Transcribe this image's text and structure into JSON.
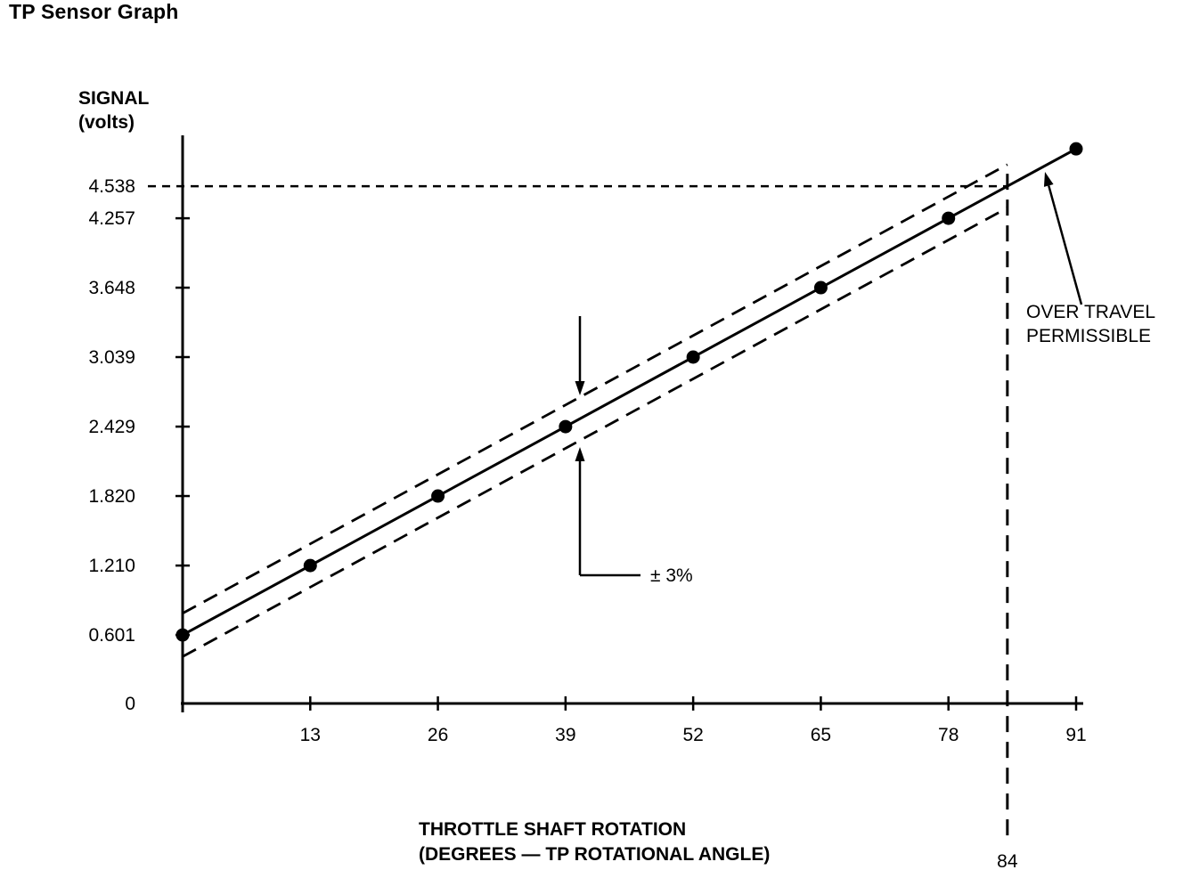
{
  "page_title": "TP Sensor Graph",
  "chart_data": {
    "type": "line",
    "title": "TP Sensor Graph",
    "ylabel_line1": "SIGNAL",
    "ylabel_line2": "(volts)",
    "xlabel_line1": "THROTTLE SHAFT ROTATION",
    "xlabel_line2": "(DEGREES — TP ROTATIONAL ANGLE)",
    "xlim": [
      0,
      91
    ],
    "ylim": [
      0,
      5
    ],
    "grid": false,
    "legend": false,
    "x_ticks": [
      "13",
      "26",
      "39",
      "52",
      "65",
      "78",
      "91"
    ],
    "x_tick_values": [
      13,
      26,
      39,
      52,
      65,
      78,
      91
    ],
    "y_ticks": [
      "0",
      "0.601",
      "1.210",
      "1.820",
      "2.429",
      "3.039",
      "3.648",
      "4.257",
      "4.538"
    ],
    "y_tick_values": [
      0,
      0.601,
      1.21,
      1.82,
      2.429,
      3.039,
      3.648,
      4.257,
      4.538
    ],
    "series": [
      {
        "name": "nominal-signal",
        "style": "solid",
        "marker": "dot",
        "degrees": [
          0,
          13,
          26,
          39,
          52,
          65,
          78,
          91
        ],
        "volts": [
          0.601,
          1.21,
          1.82,
          2.429,
          3.039,
          3.648,
          4.257,
          4.866
        ]
      },
      {
        "name": "upper-tolerance",
        "style": "dashed",
        "offset_volts": 0.19,
        "deg_range": [
          0,
          84
        ]
      },
      {
        "name": "lower-tolerance",
        "style": "dashed",
        "offset_volts": -0.19,
        "deg_range": [
          0,
          84
        ]
      }
    ],
    "reference_point": {
      "degrees": 84,
      "volts": 4.538,
      "x_label": "84",
      "y_label": "4.538"
    },
    "annotations": {
      "tolerance_label": "± 3%",
      "overtravel_line1": "OVER TRAVEL",
      "overtravel_line2": "PERMISSIBLE"
    },
    "colors": {
      "ink": "#000000",
      "background": "#ffffff"
    }
  }
}
